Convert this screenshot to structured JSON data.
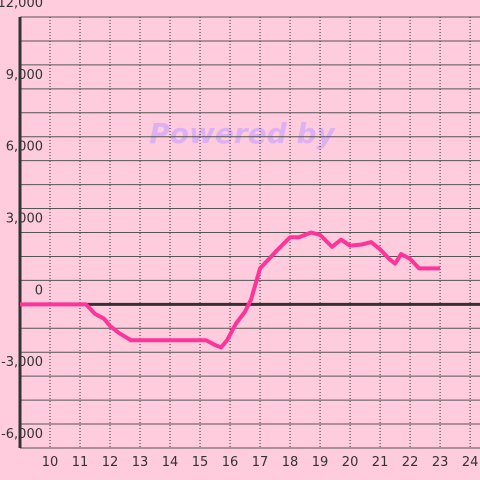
{
  "chart_data": {
    "type": "line",
    "watermark": "Powered by",
    "x": [
      9,
      11.2,
      11.5,
      11.8,
      12.0,
      12.3,
      12.7,
      15.2,
      15.5,
      15.7,
      15.9,
      16.2,
      16.5,
      16.7,
      17.0,
      17.3,
      17.6,
      18.0,
      18.3,
      18.5,
      18.7,
      19.0,
      19.4,
      19.7,
      20.0,
      20.4,
      20.7,
      21.0,
      21.3,
      21.5,
      21.7,
      22.0,
      22.3,
      23.0
    ],
    "series": [
      {
        "color": "#ff3399",
        "values": [
          0,
          0,
          -400,
          -600,
          -900,
          -1200,
          -1500,
          -1500,
          -1700,
          -1800,
          -1500,
          -800,
          -300,
          200,
          1500,
          1900,
          2300,
          2800,
          2800,
          2900,
          3000,
          2900,
          2400,
          2700,
          2450,
          2500,
          2600,
          2300,
          1900,
          1700,
          2100,
          1900,
          1500,
          1500
        ]
      }
    ],
    "xlim": [
      9,
      24.33
    ],
    "xticks": [
      10,
      11,
      12,
      13,
      14,
      15,
      16,
      17,
      18,
      19,
      20,
      21,
      22,
      23,
      24
    ],
    "ylim": [
      -6000,
      12000
    ],
    "yticks": [
      {
        "value": -6000,
        "label": "-6,000"
      },
      {
        "value": -3000,
        "label": "-3,000"
      },
      0,
      {
        "value": 3000,
        "label": "3,000"
      },
      {
        "value": 6000,
        "label": "6,000"
      },
      {
        "value": 9000,
        "label": "9,000"
      },
      {
        "value": 12000,
        "label": "12,000"
      }
    ],
    "grid": true
  }
}
